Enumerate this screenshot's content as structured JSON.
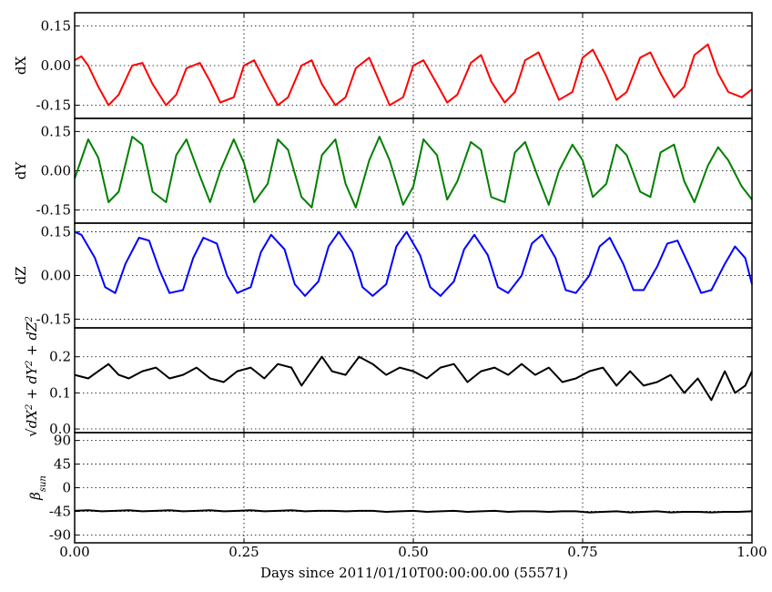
{
  "chart_data": {
    "type": "line",
    "xlabel": "Days since 2011/01/10T00:00:00.00 (55571)",
    "x_ticks": [
      "0.00",
      "0.25",
      "0.50",
      "0.75",
      "1.00"
    ],
    "xlim": [
      0,
      1
    ],
    "grid": true,
    "panels": [
      {
        "ylabel": "dX",
        "color": "#ff0000",
        "ylim": [
          -0.2,
          0.2
        ],
        "y_ticks": [
          "0.15",
          "0.00",
          "-0.15"
        ],
        "series": {
          "x": [
            0.0,
            0.01,
            0.02,
            0.035,
            0.05,
            0.065,
            0.085,
            0.1,
            0.115,
            0.135,
            0.15,
            0.165,
            0.185,
            0.2,
            0.215,
            0.235,
            0.25,
            0.265,
            0.285,
            0.3,
            0.315,
            0.335,
            0.35,
            0.365,
            0.385,
            0.4,
            0.415,
            0.435,
            0.45,
            0.465,
            0.485,
            0.5,
            0.515,
            0.535,
            0.55,
            0.565,
            0.585,
            0.6,
            0.615,
            0.635,
            0.65,
            0.665,
            0.685,
            0.7,
            0.715,
            0.735,
            0.75,
            0.765,
            0.785,
            0.8,
            0.815,
            0.835,
            0.85,
            0.865,
            0.885,
            0.9,
            0.915,
            0.935,
            0.95,
            0.965,
            0.985,
            1.0
          ],
          "y": [
            0.02,
            0.035,
            0.0,
            -0.08,
            -0.15,
            -0.11,
            0.0,
            0.01,
            -0.07,
            -0.15,
            -0.11,
            -0.01,
            0.01,
            -0.06,
            -0.14,
            -0.12,
            0.0,
            0.02,
            -0.08,
            -0.15,
            -0.12,
            0.0,
            0.02,
            -0.07,
            -0.15,
            -0.12,
            -0.01,
            0.03,
            -0.06,
            -0.15,
            -0.12,
            0.0,
            0.02,
            -0.07,
            -0.14,
            -0.11,
            0.01,
            0.04,
            -0.06,
            -0.14,
            -0.1,
            0.02,
            0.05,
            -0.04,
            -0.13,
            -0.1,
            0.03,
            0.06,
            -0.04,
            -0.13,
            -0.1,
            0.03,
            0.05,
            -0.03,
            -0.12,
            -0.08,
            0.04,
            0.08,
            -0.03,
            -0.1,
            -0.12,
            -0.09
          ]
        }
      },
      {
        "ylabel": "dY",
        "color": "#008000",
        "ylim": [
          -0.2,
          0.2
        ],
        "y_ticks": [
          "0.15",
          "0.00",
          "-0.15"
        ],
        "series": {
          "x": [
            0.0,
            0.02,
            0.035,
            0.05,
            0.065,
            0.085,
            0.1,
            0.115,
            0.135,
            0.15,
            0.165,
            0.185,
            0.2,
            0.215,
            0.235,
            0.25,
            0.265,
            0.285,
            0.3,
            0.315,
            0.335,
            0.35,
            0.365,
            0.385,
            0.4,
            0.415,
            0.435,
            0.45,
            0.465,
            0.485,
            0.5,
            0.515,
            0.535,
            0.55,
            0.565,
            0.585,
            0.6,
            0.615,
            0.635,
            0.65,
            0.665,
            0.685,
            0.7,
            0.715,
            0.735,
            0.75,
            0.765,
            0.785,
            0.8,
            0.815,
            0.835,
            0.85,
            0.865,
            0.885,
            0.9,
            0.915,
            0.935,
            0.95,
            0.965,
            0.985,
            1.0
          ],
          "y": [
            -0.03,
            0.12,
            0.05,
            -0.12,
            -0.08,
            0.13,
            0.1,
            -0.08,
            -0.12,
            0.06,
            0.12,
            -0.02,
            -0.12,
            0.0,
            0.12,
            0.03,
            -0.12,
            -0.05,
            0.12,
            0.08,
            -0.1,
            -0.14,
            0.06,
            0.12,
            -0.05,
            -0.14,
            0.04,
            0.13,
            0.04,
            -0.13,
            -0.06,
            0.12,
            0.06,
            -0.11,
            -0.04,
            0.11,
            0.08,
            -0.1,
            -0.12,
            0.07,
            0.11,
            -0.03,
            -0.13,
            0.0,
            0.1,
            0.04,
            -0.1,
            -0.05,
            0.1,
            0.06,
            -0.08,
            -0.1,
            0.07,
            0.1,
            -0.04,
            -0.12,
            0.02,
            0.09,
            0.04,
            -0.06,
            -0.11
          ]
        }
      },
      {
        "ylabel": "dZ",
        "color": "#0000ff",
        "ylim": [
          -0.18,
          0.18
        ],
        "y_ticks": [
          "0.15",
          "0.00",
          "-0.15"
        ],
        "series": {
          "x": [
            0.0,
            0.01,
            0.03,
            0.045,
            0.06,
            0.075,
            0.095,
            0.11,
            0.125,
            0.14,
            0.16,
            0.175,
            0.19,
            0.21,
            0.225,
            0.24,
            0.26,
            0.275,
            0.29,
            0.31,
            0.325,
            0.34,
            0.36,
            0.375,
            0.39,
            0.41,
            0.425,
            0.44,
            0.46,
            0.475,
            0.49,
            0.51,
            0.525,
            0.54,
            0.56,
            0.575,
            0.59,
            0.61,
            0.625,
            0.64,
            0.66,
            0.675,
            0.69,
            0.71,
            0.725,
            0.74,
            0.76,
            0.775,
            0.79,
            0.81,
            0.825,
            0.84,
            0.86,
            0.875,
            0.89,
            0.91,
            0.925,
            0.94,
            0.96,
            0.975,
            0.99,
            1.0
          ],
          "y": [
            0.15,
            0.14,
            0.06,
            -0.04,
            -0.06,
            0.04,
            0.13,
            0.12,
            0.02,
            -0.06,
            -0.05,
            0.06,
            0.13,
            0.11,
            0.0,
            -0.06,
            -0.04,
            0.08,
            0.14,
            0.09,
            -0.03,
            -0.07,
            -0.02,
            0.1,
            0.15,
            0.08,
            -0.04,
            -0.07,
            -0.03,
            0.1,
            0.15,
            0.07,
            -0.04,
            -0.07,
            -0.02,
            0.09,
            0.14,
            0.07,
            -0.04,
            -0.06,
            0.0,
            0.11,
            0.14,
            0.06,
            -0.05,
            -0.06,
            0.0,
            0.1,
            0.13,
            0.04,
            -0.05,
            -0.05,
            0.03,
            0.11,
            0.12,
            0.02,
            -0.06,
            -0.05,
            0.04,
            0.1,
            0.06,
            -0.03
          ]
        }
      },
      {
        "ylabel": "sqrt(dX^2 + dY^2 + dZ^2)",
        "color": "#000000",
        "ylim": [
          -0.01,
          0.28
        ],
        "y_ticks": [
          "0.2",
          "0.1",
          "0.0"
        ],
        "series": {
          "x": [
            0.0,
            0.02,
            0.035,
            0.05,
            0.065,
            0.08,
            0.1,
            0.12,
            0.14,
            0.16,
            0.18,
            0.2,
            0.22,
            0.24,
            0.26,
            0.28,
            0.3,
            0.32,
            0.335,
            0.35,
            0.365,
            0.38,
            0.4,
            0.42,
            0.44,
            0.46,
            0.48,
            0.5,
            0.52,
            0.54,
            0.56,
            0.58,
            0.6,
            0.62,
            0.64,
            0.66,
            0.68,
            0.7,
            0.72,
            0.74,
            0.76,
            0.78,
            0.8,
            0.82,
            0.84,
            0.86,
            0.88,
            0.9,
            0.92,
            0.94,
            0.96,
            0.975,
            0.99,
            1.0
          ],
          "y": [
            0.15,
            0.14,
            0.16,
            0.18,
            0.15,
            0.14,
            0.16,
            0.17,
            0.14,
            0.15,
            0.17,
            0.14,
            0.13,
            0.16,
            0.17,
            0.14,
            0.18,
            0.17,
            0.12,
            0.16,
            0.2,
            0.16,
            0.15,
            0.2,
            0.18,
            0.15,
            0.17,
            0.16,
            0.14,
            0.17,
            0.18,
            0.13,
            0.16,
            0.17,
            0.15,
            0.18,
            0.15,
            0.17,
            0.13,
            0.14,
            0.16,
            0.17,
            0.12,
            0.16,
            0.12,
            0.13,
            0.15,
            0.1,
            0.14,
            0.08,
            0.16,
            0.1,
            0.12,
            0.16
          ]
        }
      },
      {
        "ylabel": "β_sun",
        "color": "#000000",
        "ylim": [
          -105,
          105
        ],
        "y_ticks": [
          "90",
          "45",
          "0",
          "-45",
          "-90"
        ],
        "series": {
          "x": [
            0.0,
            0.02,
            0.04,
            0.06,
            0.08,
            0.1,
            0.12,
            0.14,
            0.16,
            0.18,
            0.2,
            0.22,
            0.24,
            0.26,
            0.28,
            0.3,
            0.32,
            0.34,
            0.36,
            0.38,
            0.4,
            0.42,
            0.44,
            0.46,
            0.48,
            0.5,
            0.52,
            0.54,
            0.56,
            0.58,
            0.6,
            0.62,
            0.64,
            0.66,
            0.68,
            0.7,
            0.72,
            0.74,
            0.76,
            0.78,
            0.8,
            0.82,
            0.84,
            0.86,
            0.88,
            0.9,
            0.92,
            0.94,
            0.96,
            0.98,
            1.0
          ],
          "y": [
            -44,
            -43,
            -45,
            -44,
            -43,
            -45,
            -44,
            -43,
            -45,
            -44,
            -43,
            -45,
            -44,
            -43,
            -45,
            -44,
            -43,
            -45,
            -44,
            -44,
            -45,
            -44,
            -44,
            -46,
            -45,
            -44,
            -46,
            -45,
            -44,
            -46,
            -45,
            -44,
            -46,
            -45,
            -45,
            -46,
            -45,
            -45,
            -47,
            -46,
            -45,
            -47,
            -46,
            -45,
            -47,
            -46,
            -46,
            -47,
            -46,
            -46,
            -45
          ]
        }
      }
    ]
  }
}
